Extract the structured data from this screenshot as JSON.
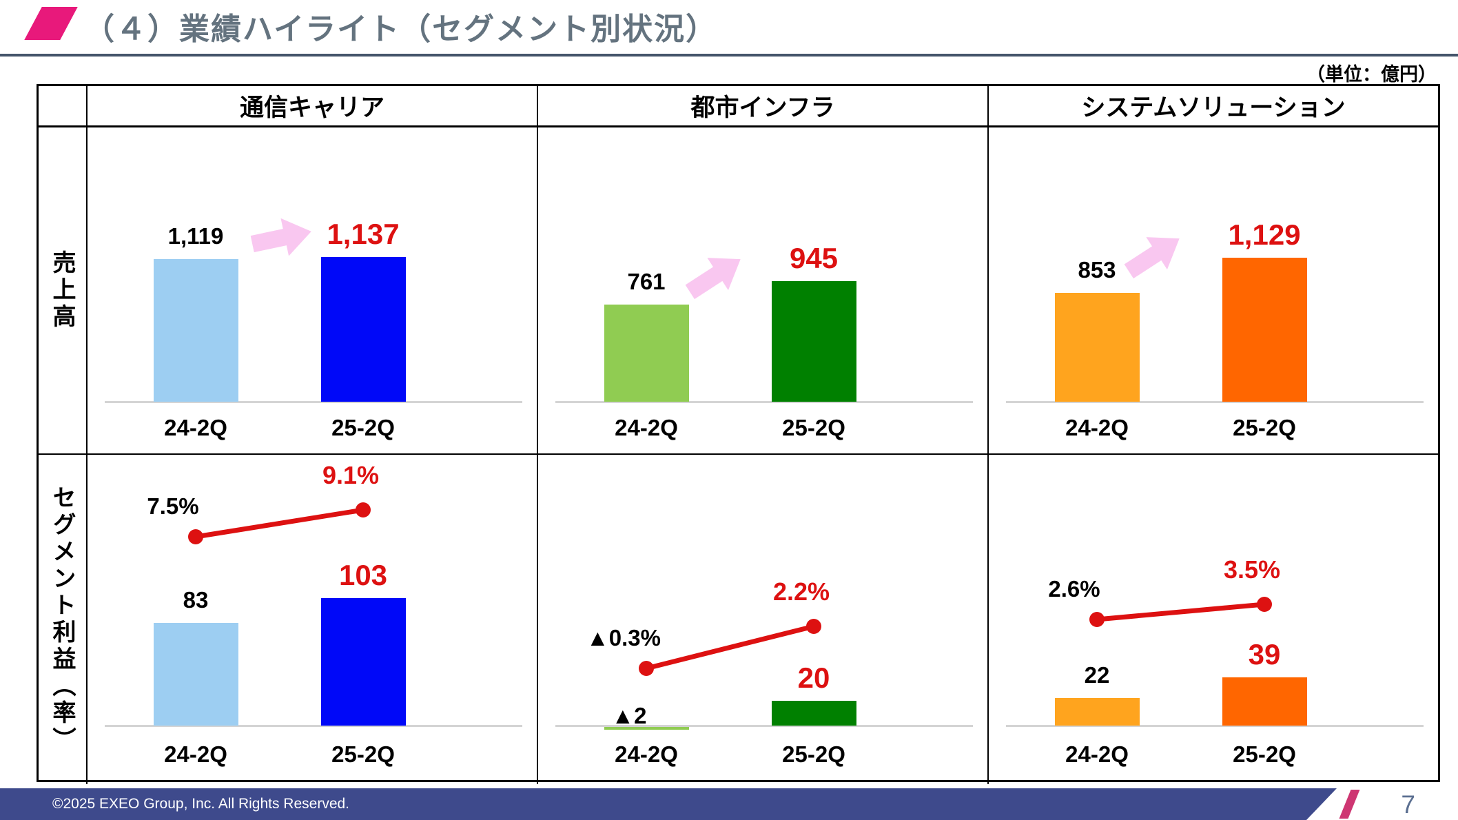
{
  "title": "（４）業績ハイライト（セグメント別状況）",
  "unit_label": "（単位：億円）",
  "table": {
    "column_headers": [
      "通信キャリア",
      "都市インフラ",
      "システムソリューション"
    ],
    "row_labels": [
      "売上高",
      "セグメント利益（率）"
    ]
  },
  "colors": {
    "accent_pink": "#E8197B",
    "title_gray": "#64737F",
    "underline": "#44546A",
    "red": "#DD1111",
    "arrow_pink": "#F9C7F0",
    "axis_gray": "#D4D4D4",
    "footer_blue": "#3E4A8C",
    "footer_slash": "#CE3672",
    "page_number_color": "#5B6F91",
    "light_blue": "#9DCEF2",
    "dark_blue": "#0008F8",
    "light_green": "#90CC52",
    "dark_green": "#008000",
    "amber": "#FFA41E",
    "dark_orange": "#FF6600"
  },
  "chart_data": [
    {
      "type": "bar",
      "segment": "通信キャリア",
      "metric": "売上高",
      "categories": [
        "24-2Q",
        "25-2Q"
      ],
      "values": [
        1119,
        1137
      ],
      "value_labels": [
        "1,119",
        "1,137"
      ],
      "bar_colors": [
        "#9DCEF2",
        "#0008F8"
      ],
      "arrow": "pink-up-right"
    },
    {
      "type": "bar",
      "segment": "都市インフラ",
      "metric": "売上高",
      "categories": [
        "24-2Q",
        "25-2Q"
      ],
      "values": [
        761,
        945
      ],
      "value_labels": [
        "761",
        "945"
      ],
      "bar_colors": [
        "#90CC52",
        "#008000"
      ],
      "arrow": "pink-up-right"
    },
    {
      "type": "bar",
      "segment": "システムソリューション",
      "metric": "売上高",
      "categories": [
        "24-2Q",
        "25-2Q"
      ],
      "values": [
        853,
        1129
      ],
      "value_labels": [
        "853",
        "1,129"
      ],
      "bar_colors": [
        "#FFA41E",
        "#FF6600"
      ],
      "arrow": "pink-up-right"
    },
    {
      "type": "bar+line",
      "segment": "通信キャリア",
      "metric": "セグメント利益（率）",
      "categories": [
        "24-2Q",
        "25-2Q"
      ],
      "bar_values": [
        83,
        103
      ],
      "bar_labels": [
        "83",
        "103"
      ],
      "bar_colors": [
        "#9DCEF2",
        "#0008F8"
      ],
      "line_values": [
        7.5,
        9.1
      ],
      "line_labels": [
        "7.5%",
        "9.1%"
      ],
      "line_color": "#DD1111"
    },
    {
      "type": "bar+line",
      "segment": "都市インフラ",
      "metric": "セグメント利益（率）",
      "categories": [
        "24-2Q",
        "25-2Q"
      ],
      "bar_values": [
        -2,
        20
      ],
      "bar_labels": [
        "▲2",
        "20"
      ],
      "bar_colors": [
        "#90CC52",
        "#008000"
      ],
      "line_values": [
        -0.3,
        2.2
      ],
      "line_labels": [
        "▲0.3%",
        "2.2%"
      ],
      "line_color": "#DD1111"
    },
    {
      "type": "bar+line",
      "segment": "システムソリューション",
      "metric": "セグメント利益（率）",
      "categories": [
        "24-2Q",
        "25-2Q"
      ],
      "bar_values": [
        22,
        39
      ],
      "bar_labels": [
        "22",
        "39"
      ],
      "bar_colors": [
        "#FFA41E",
        "#FF6600"
      ],
      "line_values": [
        2.6,
        3.5
      ],
      "line_labels": [
        "2.6%",
        "3.5%"
      ],
      "line_color": "#DD1111"
    }
  ],
  "footer": {
    "copyright": "©2025 EXEO Group, Inc. All Rights Reserved.",
    "page_number": "7"
  }
}
